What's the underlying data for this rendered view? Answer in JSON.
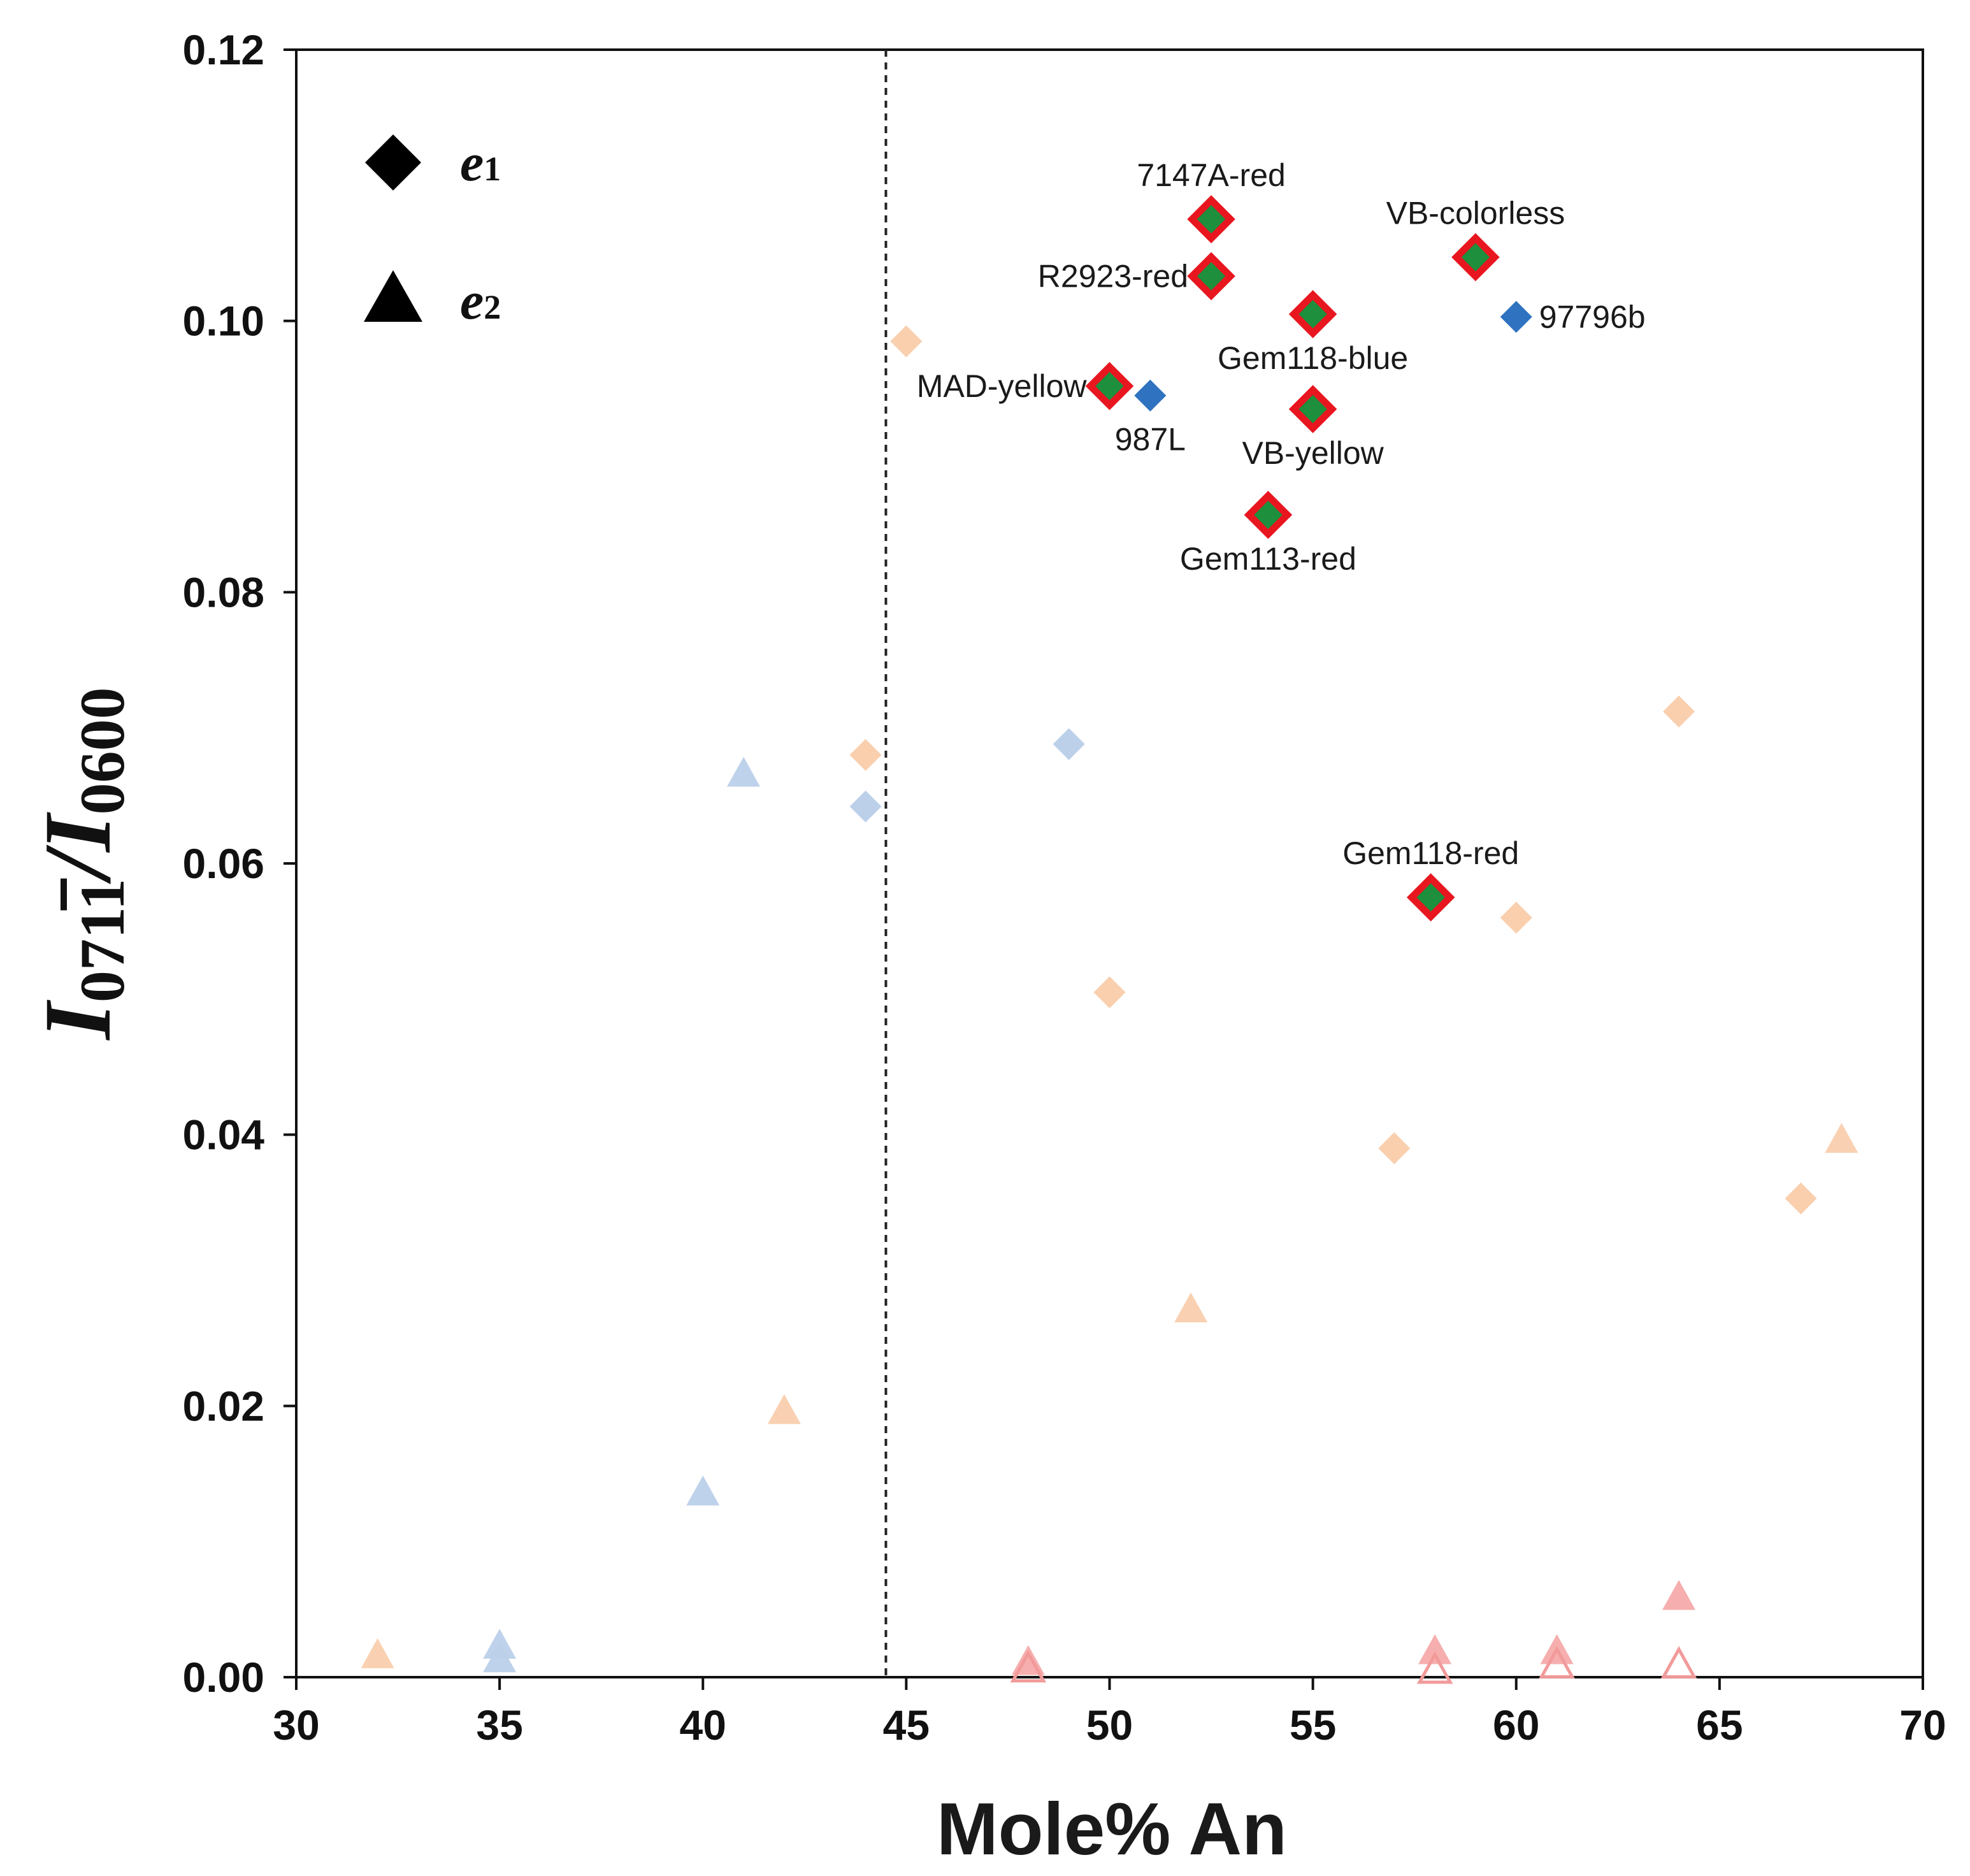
{
  "chart_data": {
    "type": "scatter",
    "xlabel": "Mole% An",
    "ylabel": {
      "main1": "I",
      "sub1": "0711",
      "bar_index": 3,
      "slash": "/",
      "main2": "I",
      "sub2": "0600"
    },
    "xlim": [
      30,
      70
    ],
    "ylim": [
      0,
      0.12
    ],
    "xticks": [
      "30",
      "35",
      "40",
      "45",
      "50",
      "55",
      "60",
      "65",
      "70"
    ],
    "yticks": [
      "0.00",
      "0.02",
      "0.04",
      "0.06",
      "0.08",
      "0.10",
      "0.12"
    ],
    "reference_line": {
      "x": 44.5,
      "style": "dashed"
    },
    "legend": {
      "placement": "top-left",
      "entries": [
        {
          "marker": "diamond",
          "symbol": "e",
          "sub": "1"
        },
        {
          "marker": "triangle",
          "symbol": "e",
          "sub": "2"
        }
      ]
    },
    "colors": {
      "highlight_fill": "#1e8f3c",
      "highlight_stroke": "#e8161f",
      "blue": "#2e72c0",
      "faded_orange": "#f9cfae",
      "faded_blue": "#bcd0ea",
      "faded_pink": "#f6aaaa",
      "hollow_pink": "#f29a9a"
    },
    "series": [
      {
        "marker": "diamond",
        "style": "highlight",
        "points": [
          {
            "x": 52.5,
            "y": 0.1075,
            "label": "7147A-red",
            "anchor": "above"
          },
          {
            "x": 52.5,
            "y": 0.1033,
            "label": "R2923-red",
            "anchor": "left"
          },
          {
            "x": 59.0,
            "y": 0.1047,
            "label": "VB-colorless",
            "anchor": "above"
          },
          {
            "x": 55.0,
            "y": 0.1005,
            "label": "Gem118-blue",
            "anchor": "below"
          },
          {
            "x": 50.0,
            "y": 0.0952,
            "label": "MAD-yellow",
            "anchor": "left"
          },
          {
            "x": 55.0,
            "y": 0.0935,
            "label": "VB-yellow",
            "anchor": "below"
          },
          {
            "x": 53.9,
            "y": 0.0857,
            "label": "Gem113-red",
            "anchor": "below"
          },
          {
            "x": 57.9,
            "y": 0.0575,
            "label": "Gem118-red",
            "anchor": "above"
          }
        ]
      },
      {
        "marker": "diamond",
        "style": "blue",
        "points": [
          {
            "x": 60.0,
            "y": 0.1003,
            "label": "97796b",
            "anchor": "right"
          },
          {
            "x": 51.0,
            "y": 0.0945,
            "label": "987L",
            "anchor": "below"
          }
        ]
      },
      {
        "marker": "diamond",
        "style": "faded_orange",
        "points": [
          {
            "x": 45.0,
            "y": 0.0985
          },
          {
            "x": 44.0,
            "y": 0.068
          },
          {
            "x": 64.0,
            "y": 0.0712
          },
          {
            "x": 60.0,
            "y": 0.056
          },
          {
            "x": 50.0,
            "y": 0.0505
          },
          {
            "x": 57.0,
            "y": 0.039
          },
          {
            "x": 67.0,
            "y": 0.0353
          }
        ]
      },
      {
        "marker": "diamond",
        "style": "faded_blue",
        "points": [
          {
            "x": 49.0,
            "y": 0.0688
          },
          {
            "x": 44.0,
            "y": 0.0642
          }
        ]
      },
      {
        "marker": "triangle",
        "style": "faded_blue",
        "points": [
          {
            "x": 41.0,
            "y": 0.0665
          },
          {
            "x": 40.0,
            "y": 0.0135
          },
          {
            "x": 35.0,
            "y": 0.0022
          },
          {
            "x": 35.0,
            "y": 0.0012
          }
        ]
      },
      {
        "marker": "triangle",
        "style": "faded_orange",
        "points": [
          {
            "x": 68.0,
            "y": 0.0395
          },
          {
            "x": 52.0,
            "y": 0.027
          },
          {
            "x": 42.0,
            "y": 0.0195
          },
          {
            "x": 32.0,
            "y": 0.0015
          }
        ]
      },
      {
        "marker": "triangle",
        "style": "faded_pink",
        "points": [
          {
            "x": 64.0,
            "y": 0.0058
          },
          {
            "x": 58.0,
            "y": 0.0018
          },
          {
            "x": 61.0,
            "y": 0.0018
          },
          {
            "x": 48.0,
            "y": 0.001
          }
        ]
      },
      {
        "marker": "triangle",
        "style": "hollow_pink",
        "points": [
          {
            "x": 48.0,
            "y": 0.0005
          },
          {
            "x": 58.0,
            "y": 0.0004
          },
          {
            "x": 61.0,
            "y": 0.0008
          },
          {
            "x": 64.0,
            "y": 0.0008
          }
        ]
      }
    ]
  }
}
